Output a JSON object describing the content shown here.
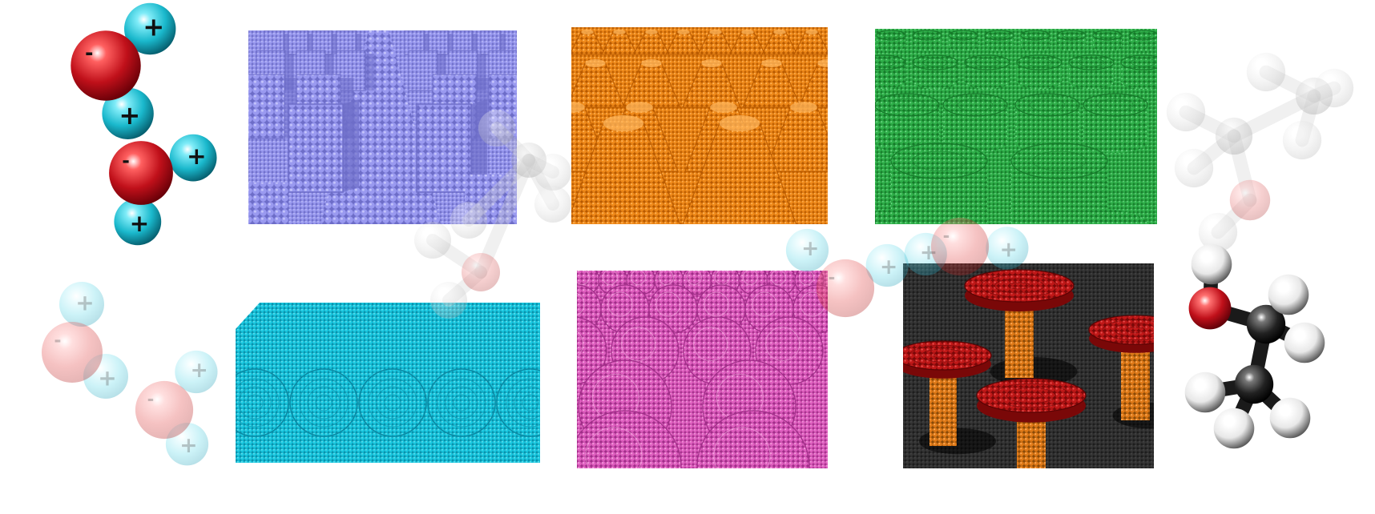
{
  "figure": {
    "background": "#ffffff",
    "panels": [
      {
        "id": "square-pillars",
        "shape": "square pillars",
        "color": "#9a9af0",
        "shade": "#6d6dc8",
        "light": "#c4c4fa"
      },
      {
        "id": "cones",
        "shape": "cones",
        "color": "#f08a1a",
        "shade": "#b85a00",
        "light": "#ffb860"
      },
      {
        "id": "cylinders",
        "shape": "cylindrical pillars",
        "color": "#2fb04a",
        "shade": "#167a2a",
        "light": "#72d88a"
      },
      {
        "id": "ridges",
        "shape": "half-cylinder ridges",
        "color": "#18c8e0",
        "shade": "#0a8aa4",
        "light": "#80e8f4"
      },
      {
        "id": "domes",
        "shape": "hemispherical domes",
        "color": "#e060c0",
        "shade": "#a02e88",
        "light": "#f4a8e0"
      },
      {
        "id": "mushrooms",
        "shape": "mushroom pillars",
        "color": "#c01818",
        "shade": "#7a0808",
        "light": "#e85050",
        "stem": "#e07a18",
        "floor": "#2a2a2a"
      }
    ],
    "molecules": [
      {
        "id": "water-1",
        "type": "water",
        "charges": {
          "oxygen": "-",
          "hydrogen": "+"
        },
        "oxygen": "#c0101a",
        "hydrogen": "#1ab8cc"
      },
      {
        "id": "water-2",
        "type": "water",
        "charges": {
          "oxygen": "-",
          "hydrogen": "+"
        },
        "oxygen": "#c0101a",
        "hydrogen": "#1ab8cc"
      },
      {
        "id": "water-3",
        "type": "water",
        "faded": true,
        "charges": {
          "oxygen": "-",
          "hydrogen": "+"
        }
      },
      {
        "id": "water-4",
        "type": "water",
        "faded": true,
        "charges": {
          "oxygen": "-",
          "hydrogen": "+"
        }
      },
      {
        "id": "water-5",
        "type": "water",
        "faded": true,
        "charges": {
          "oxygen": "-",
          "hydrogen": "+"
        }
      },
      {
        "id": "water-6",
        "type": "water",
        "faded": true,
        "charges": {
          "oxygen": "-",
          "hydrogen": "+"
        }
      },
      {
        "id": "ethanol-1",
        "type": "ethanol",
        "carbon": "#1a1a1a",
        "oxygen": "#c0101a",
        "hydrogen": "#ffffff"
      },
      {
        "id": "ethanol-2",
        "type": "ethanol",
        "faded": true
      },
      {
        "id": "ethanol-3",
        "type": "ethanol",
        "faded": true
      }
    ]
  }
}
